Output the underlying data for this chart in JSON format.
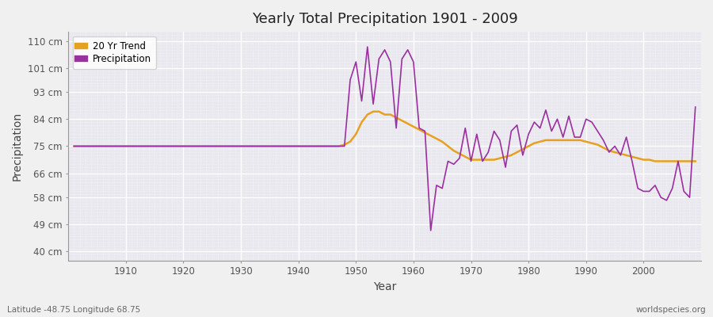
{
  "title": "Yearly Total Precipitation 1901 - 2009",
  "xlabel": "Year",
  "ylabel": "Precipitation",
  "lat_lon_label": "Latitude -48.75 Longitude 68.75",
  "source_label": "worldspecies.org",
  "precip_color": "#9B30A0",
  "trend_color": "#E8A020",
  "bg_color": "#f0f0f0",
  "plot_bg": "#e8e8ee",
  "grid_color": "#ffffff",
  "ytick_labels": [
    "40 cm",
    "49 cm",
    "58 cm",
    "66 cm",
    "75 cm",
    "84 cm",
    "93 cm",
    "101 cm",
    "110 cm"
  ],
  "ytick_values": [
    40,
    49,
    58,
    66,
    75,
    84,
    93,
    101,
    110
  ],
  "ylim": [
    37,
    113
  ],
  "xlim": [
    1900,
    2010
  ],
  "years": [
    1901,
    1902,
    1903,
    1904,
    1905,
    1906,
    1907,
    1908,
    1909,
    1910,
    1911,
    1912,
    1913,
    1914,
    1915,
    1916,
    1917,
    1918,
    1919,
    1920,
    1921,
    1922,
    1923,
    1924,
    1925,
    1926,
    1927,
    1928,
    1929,
    1930,
    1931,
    1932,
    1933,
    1934,
    1935,
    1936,
    1937,
    1938,
    1939,
    1940,
    1941,
    1942,
    1943,
    1944,
    1945,
    1946,
    1947,
    1948,
    1949,
    1950,
    1951,
    1952,
    1953,
    1954,
    1955,
    1956,
    1957,
    1958,
    1959,
    1960,
    1961,
    1962,
    1963,
    1964,
    1965,
    1966,
    1967,
    1968,
    1969,
    1970,
    1971,
    1972,
    1973,
    1974,
    1975,
    1976,
    1977,
    1978,
    1979,
    1980,
    1981,
    1982,
    1983,
    1984,
    1985,
    1986,
    1987,
    1988,
    1989,
    1990,
    1991,
    1992,
    1993,
    1994,
    1995,
    1996,
    1997,
    1998,
    1999,
    2000,
    2001,
    2002,
    2003,
    2004,
    2005,
    2006,
    2007,
    2008,
    2009
  ],
  "precip": [
    75,
    75,
    75,
    75,
    75,
    75,
    75,
    75,
    75,
    75,
    75,
    75,
    75,
    75,
    75,
    75,
    75,
    75,
    75,
    75,
    75,
    75,
    75,
    75,
    75,
    75,
    75,
    75,
    75,
    75,
    75,
    75,
    75,
    75,
    75,
    75,
    75,
    75,
    75,
    75,
    75,
    75,
    75,
    75,
    75,
    75,
    75,
    75,
    97,
    103,
    90,
    108,
    89,
    104,
    107,
    103,
    81,
    104,
    107,
    103,
    81,
    80,
    47,
    62,
    61,
    70,
    69,
    71,
    81,
    70,
    79,
    70,
    73,
    80,
    77,
    68,
    80,
    82,
    72,
    79,
    83,
    81,
    87,
    80,
    84,
    78,
    85,
    78,
    78,
    84,
    83,
    80,
    77,
    73,
    75,
    72,
    78,
    70,
    61,
    60,
    60,
    62,
    58,
    57,
    61,
    70,
    60,
    58,
    88
  ],
  "trend": [
    75,
    75,
    75,
    75,
    75,
    75,
    75,
    75,
    75,
    75,
    75,
    75,
    75,
    75,
    75,
    75,
    75,
    75,
    75,
    75,
    75,
    75,
    75,
    75,
    75,
    75,
    75,
    75,
    75,
    75,
    75,
    75,
    75,
    75,
    75,
    75,
    75,
    75,
    75,
    75,
    75,
    75,
    75,
    75,
    75,
    75,
    75,
    75.5,
    76.5,
    79,
    83,
    85.5,
    86.5,
    86.5,
    85.5,
    85.5,
    84.5,
    83.5,
    82.5,
    81.5,
    80.5,
    79.5,
    78.5,
    77.5,
    76.5,
    75,
    73.5,
    72.5,
    71.5,
    70.5,
    70.5,
    70.5,
    70.5,
    70.5,
    71,
    71.5,
    72,
    73,
    74,
    75,
    76,
    76.5,
    77,
    77,
    77,
    77,
    77,
    77,
    77,
    76.5,
    76,
    75.5,
    74.5,
    73.5,
    73,
    72.5,
    72,
    71.5,
    71,
    70.5,
    70.5,
    70,
    70,
    70,
    70,
    70,
    70,
    70,
    70
  ]
}
